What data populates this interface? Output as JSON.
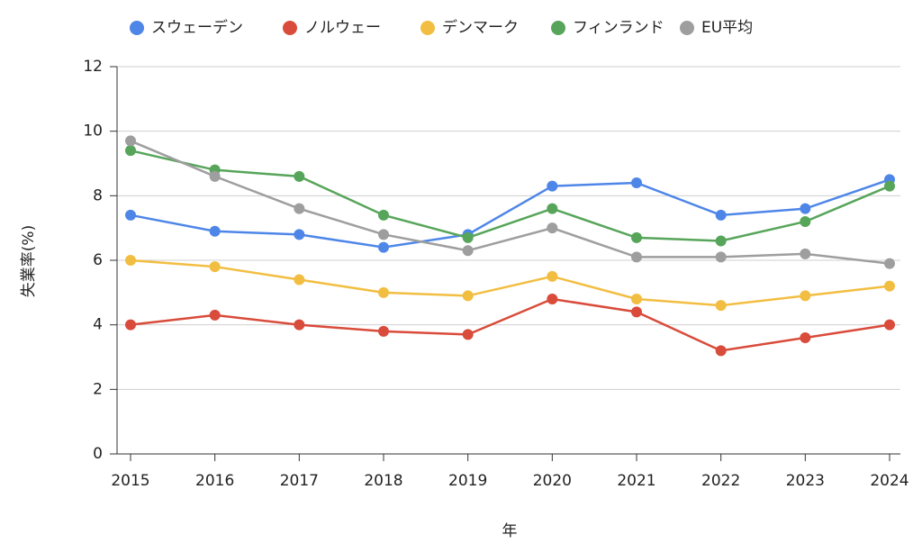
{
  "chart_data": {
    "type": "line",
    "x_label": "年",
    "y_label": "失業率(%)",
    "categories": [
      "2015",
      "2016",
      "2017",
      "2018",
      "2019",
      "2020",
      "2021",
      "2022",
      "2023",
      "2024"
    ],
    "series": [
      {
        "name": "スウェーデン",
        "color": "#4e86e8",
        "values": [
          7.4,
          6.9,
          6.8,
          6.4,
          6.8,
          8.3,
          8.4,
          7.4,
          7.6,
          8.5
        ]
      },
      {
        "name": "ノルウェー",
        "color": "#d94b3a",
        "values": [
          4.0,
          4.3,
          4.0,
          3.8,
          3.7,
          4.8,
          4.4,
          3.2,
          3.6,
          4.0
        ]
      },
      {
        "name": "デンマーク",
        "color": "#f2be42",
        "values": [
          6.0,
          5.8,
          5.4,
          5.0,
          4.9,
          5.5,
          4.8,
          4.6,
          4.9,
          5.2
        ]
      },
      {
        "name": "フィンランド",
        "color": "#57a55a",
        "values": [
          9.4,
          8.8,
          8.6,
          7.4,
          6.7,
          7.6,
          6.7,
          6.6,
          7.2,
          8.3
        ]
      },
      {
        "name": "EU平均",
        "color": "#9e9e9e",
        "values": [
          9.7,
          8.6,
          7.6,
          6.8,
          6.3,
          7.0,
          6.1,
          6.1,
          6.2,
          5.9
        ]
      }
    ],
    "ylim": [
      0,
      12
    ],
    "yticks": [
      0,
      2,
      4,
      6,
      8,
      10,
      12
    ],
    "grid": true,
    "legend": "top"
  }
}
